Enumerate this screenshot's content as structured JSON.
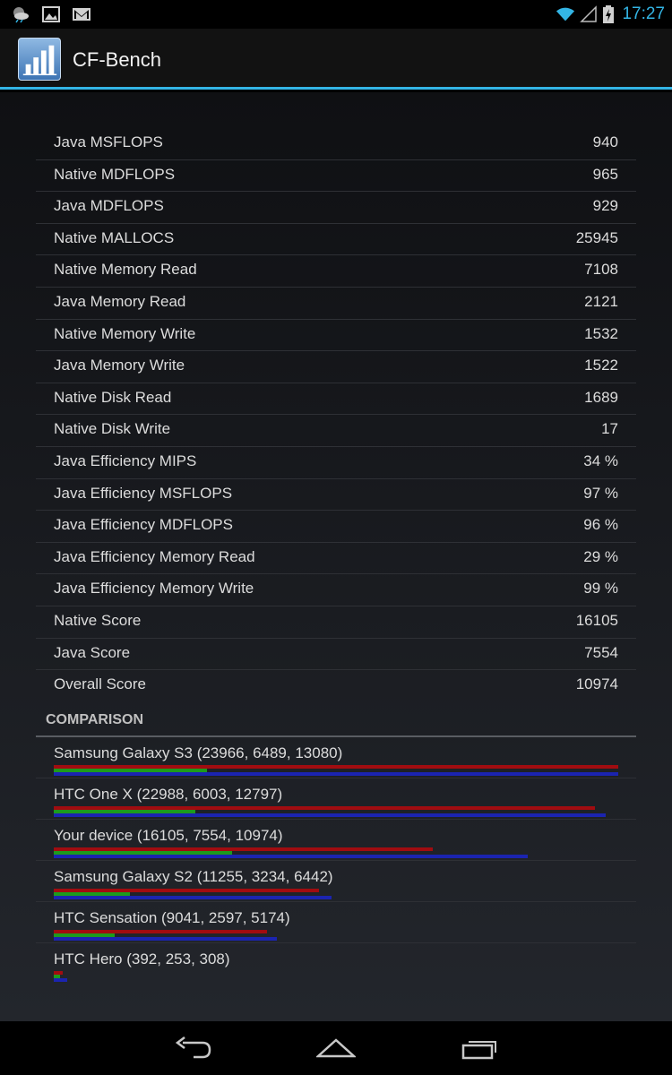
{
  "status_bar": {
    "time": "17:27",
    "colors": {
      "accent": "#33b5e5"
    },
    "icons": [
      "weather-icon",
      "image-icon",
      "gmail-icon",
      "wifi-icon",
      "signal-icon",
      "battery-charging-icon"
    ]
  },
  "app": {
    "title": "CF-Bench"
  },
  "results": [
    {
      "label": "Java MSFLOPS",
      "value": "940"
    },
    {
      "label": "Native MDFLOPS",
      "value": "965"
    },
    {
      "label": "Java MDFLOPS",
      "value": "929"
    },
    {
      "label": "Native MALLOCS",
      "value": "25945"
    },
    {
      "label": "Native Memory Read",
      "value": "7108"
    },
    {
      "label": "Java Memory Read",
      "value": "2121"
    },
    {
      "label": "Native Memory Write",
      "value": "1532"
    },
    {
      "label": "Java Memory Write",
      "value": "1522"
    },
    {
      "label": "Native Disk Read",
      "value": "1689"
    },
    {
      "label": "Native Disk Write",
      "value": "17"
    },
    {
      "label": "Java Efficiency MIPS",
      "value": "34 %"
    },
    {
      "label": "Java Efficiency MSFLOPS",
      "value": "97 %"
    },
    {
      "label": "Java Efficiency MDFLOPS",
      "value": "96 %"
    },
    {
      "label": "Java Efficiency Memory Read",
      "value": "29 %"
    },
    {
      "label": "Java Efficiency Memory Write",
      "value": "99 %"
    },
    {
      "label": "Native Score",
      "value": "16105"
    },
    {
      "label": "Java Score",
      "value": "7554"
    },
    {
      "label": "Overall Score",
      "value": "10974"
    }
  ],
  "comparison": {
    "header": "COMPARISON",
    "colors": {
      "native": "#a10c10",
      "java": "#1d9b1d",
      "overall": "#1b24b0"
    },
    "items": [
      {
        "label": "Samsung Galaxy S3 (23966, 6489, 13080)",
        "native": 23966,
        "java": 6489,
        "overall": 13080
      },
      {
        "label": "HTC One X (22988, 6003, 12797)",
        "native": 22988,
        "java": 6003,
        "overall": 12797
      },
      {
        "label": "Your device (16105, 7554, 10974)",
        "native": 16105,
        "java": 7554,
        "overall": 10974
      },
      {
        "label": "Samsung Galaxy S2 (11255, 3234, 6442)",
        "native": 11255,
        "java": 3234,
        "overall": 6442
      },
      {
        "label": "HTC Sensation (9041, 2597, 5174)",
        "native": 9041,
        "java": 2597,
        "overall": 5174
      },
      {
        "label": "HTC Hero (392, 253, 308)",
        "native": 392,
        "java": 253,
        "overall": 308
      }
    ]
  },
  "nav_bar": {
    "icons": [
      "back-icon",
      "home-icon",
      "recent-apps-icon"
    ]
  }
}
